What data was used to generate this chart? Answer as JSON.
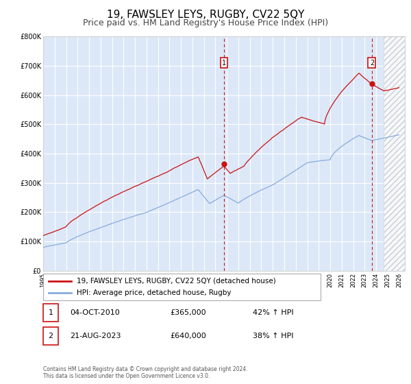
{
  "title": "19, FAWSLEY LEYS, RUGBY, CV22 5QY",
  "subtitle": "Price paid vs. HM Land Registry's House Price Index (HPI)",
  "title_fontsize": 11,
  "subtitle_fontsize": 9,
  "ylim": [
    0,
    800000
  ],
  "xlim_start": 1995.0,
  "xlim_end": 2026.5,
  "background_color": "#dce8f8",
  "grid_color": "#ffffff",
  "legend_line1": "19, FAWSLEY LEYS, RUGBY, CV22 5QY (detached house)",
  "legend_line2": "HPI: Average price, detached house, Rugby",
  "line1_color": "#cc1111",
  "line2_color": "#88aadd",
  "marker1_date": 2010.75,
  "marker1_value": 365000,
  "marker2_date": 2023.63,
  "marker2_value": 640000,
  "vline1_date": 2010.75,
  "vline2_date": 2023.63,
  "annotation1_label": "1",
  "annotation2_label": "2",
  "footer": "Contains HM Land Registry data © Crown copyright and database right 2024.\nThis data is licensed under the Open Government Licence v3.0.",
  "table_row1": [
    "1",
    "04-OCT-2010",
    "£365,000",
    "42% ↑ HPI"
  ],
  "table_row2": [
    "2",
    "21-AUG-2023",
    "£640,000",
    "38% ↑ HPI"
  ],
  "hatch_after": 2024.67
}
